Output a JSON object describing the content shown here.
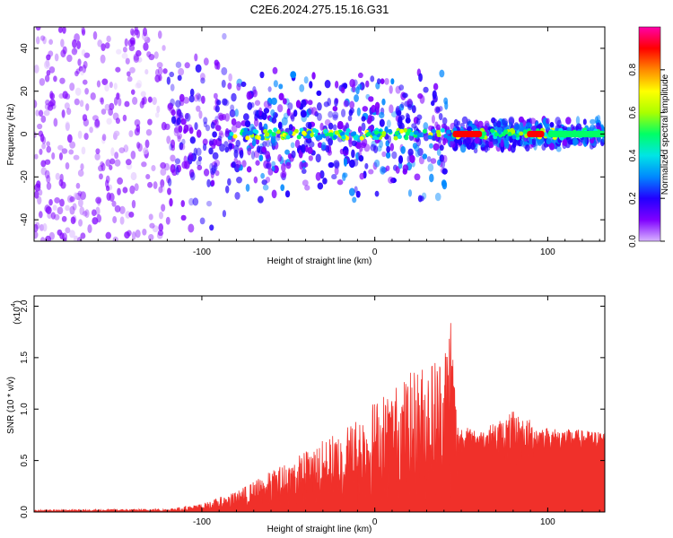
{
  "title": "C2E6.2024.275.15.16.G31",
  "chart_data": [
    {
      "type": "heatmap",
      "xlabel": "Height of straight line (km)",
      "ylabel": "Frequency (Hz)",
      "xlim": [
        -197,
        133
      ],
      "ylim": [
        -50,
        50
      ],
      "xticks": [
        "-100",
        "0",
        "100"
      ],
      "yticks": [
        "-40",
        "-20",
        "0",
        "20",
        "40"
      ],
      "colorbar": {
        "label": "Normalized spectral amplitude",
        "range": [
          0,
          1
        ],
        "ticks": [
          "0.0",
          "0.2",
          "0.4",
          "0.6",
          "0.8"
        ],
        "colors": [
          "#d8b4ff",
          "#7f00ff",
          "#2200ff",
          "#0088ff",
          "#00e5e5",
          "#00ff66",
          "#aaff00",
          "#ffff00",
          "#ff8800",
          "#ff0000",
          "#ff00aa"
        ]
      },
      "features": [
        {
          "x_range": [
            -197,
            -120
          ],
          "description_level": 0.05
        },
        {
          "x_range": [
            -120,
            40
          ],
          "description_level": 0.25
        },
        {
          "x_range": [
            45,
            62
          ],
          "level": 0.9
        },
        {
          "x_range": [
            88,
            98
          ],
          "level": 0.9
        },
        {
          "x_range": [
            100,
            133
          ],
          "level": 0.5
        }
      ]
    },
    {
      "type": "line",
      "xlabel": "Height of straight line (km)",
      "ylabel": "SNR (10 * v/v)",
      "y_multiplier": "(x10",
      "y_multiplier_exp": "4",
      "y_multiplier_close": ")",
      "xlim": [
        -197,
        133
      ],
      "ylim": [
        0,
        2.1
      ],
      "xticks": [
        "-100",
        "0",
        "100"
      ],
      "yticks": [
        "0.0",
        "0.5",
        "1.0",
        "1.5",
        "2.0"
      ],
      "color": "#f0302a",
      "envelope": [
        {
          "x": -197,
          "y": 0.02
        },
        {
          "x": -120,
          "y": 0.03
        },
        {
          "x": -100,
          "y": 0.08
        },
        {
          "x": -80,
          "y": 0.2
        },
        {
          "x": -60,
          "y": 0.4
        },
        {
          "x": -40,
          "y": 0.6
        },
        {
          "x": -20,
          "y": 0.8
        },
        {
          "x": 0,
          "y": 1.1
        },
        {
          "x": 20,
          "y": 1.35
        },
        {
          "x": 40,
          "y": 1.6
        },
        {
          "x": 44,
          "y": 2.1
        },
        {
          "x": 48,
          "y": 0.85
        },
        {
          "x": 60,
          "y": 0.75
        },
        {
          "x": 80,
          "y": 1.0
        },
        {
          "x": 100,
          "y": 0.8
        },
        {
          "x": 133,
          "y": 0.75
        }
      ]
    }
  ]
}
